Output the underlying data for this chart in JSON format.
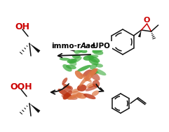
{
  "bg_color": "#ffffff",
  "arrow_color": "#111111",
  "oh_color": "#cc0000",
  "bond_color": "#111111",
  "green_protein": "#3aaa3a",
  "red_protein1": "#bb3311",
  "red_protein2": "#dd7744",
  "label_normal": "immo-r",
  "label_italic": "Aae",
  "label_normal2": "UPO"
}
